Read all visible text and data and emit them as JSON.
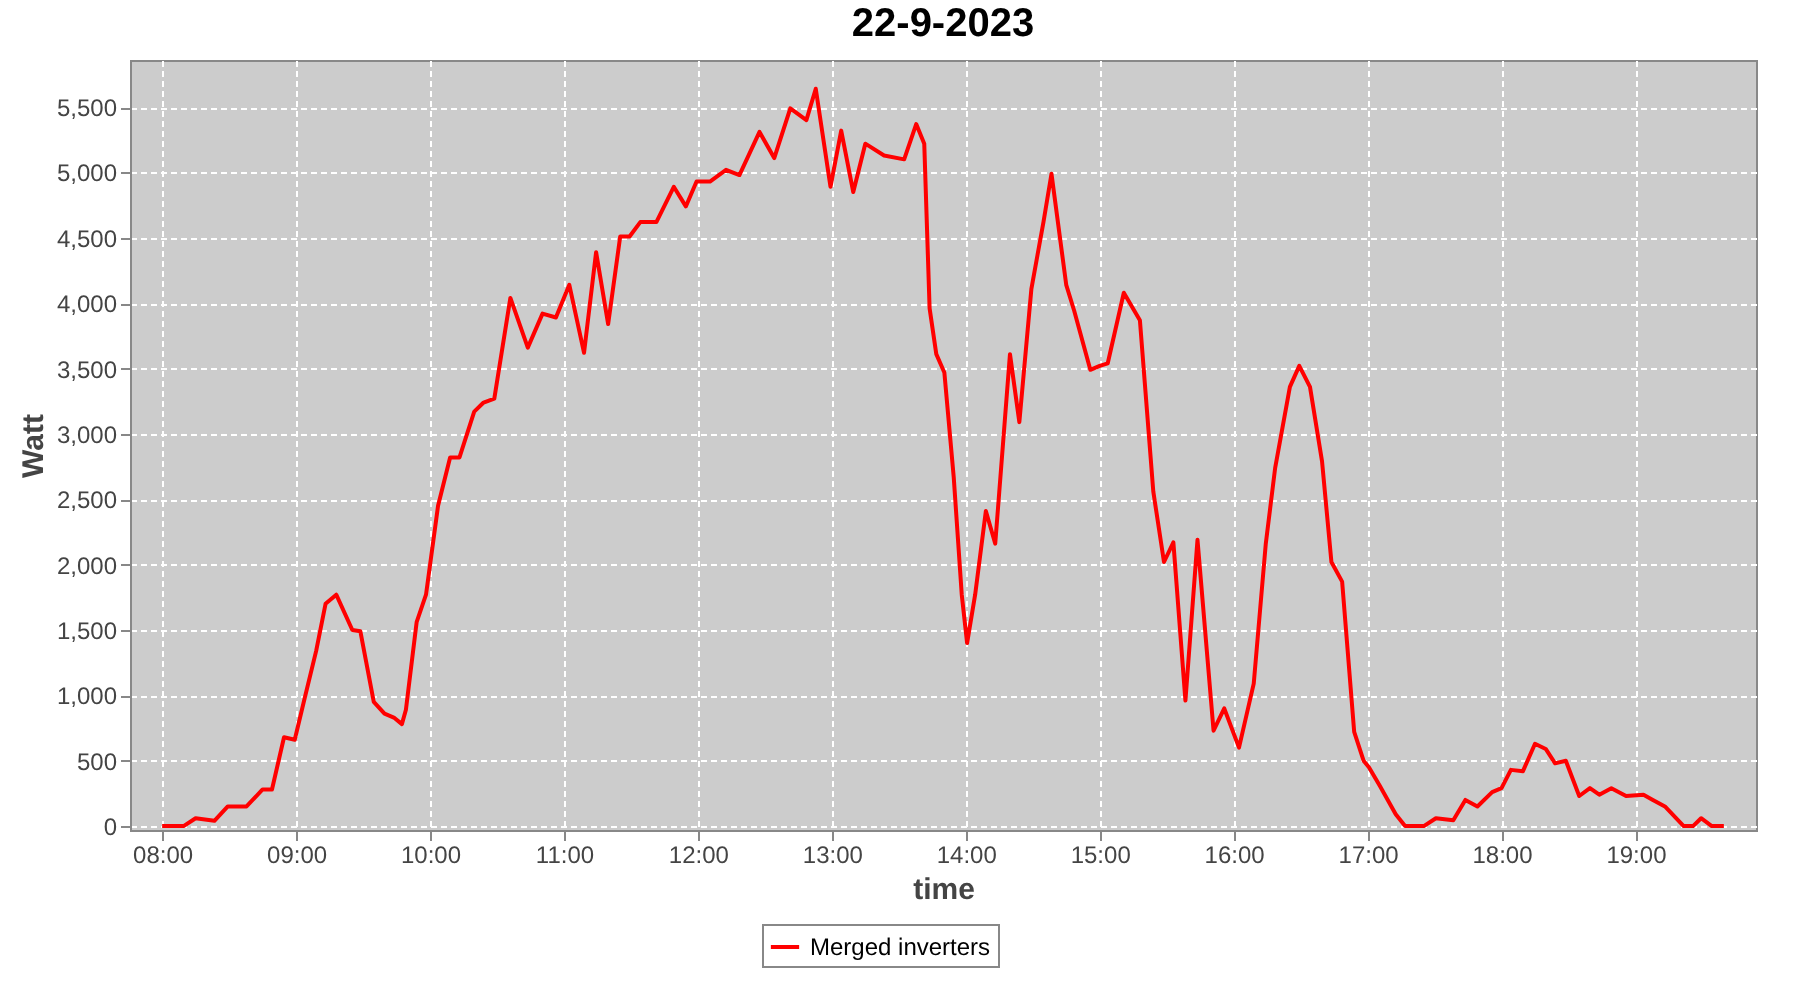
{
  "chart_data": {
    "type": "line",
    "title": "22-9-2023",
    "xlabel": "time",
    "ylabel": "Watt",
    "x": [
      8.0,
      8.16,
      8.25,
      8.39,
      8.49,
      8.63,
      8.75,
      8.82,
      8.91,
      8.99,
      9.06,
      9.15,
      9.22,
      9.3,
      9.42,
      9.48,
      9.58,
      9.66,
      9.73,
      9.79,
      9.82,
      9.9,
      9.97,
      10.06,
      10.15,
      10.22,
      10.33,
      10.4,
      10.48,
      10.6,
      10.73,
      10.84,
      10.94,
      11.04,
      11.15,
      11.24,
      11.33,
      11.42,
      11.49,
      11.57,
      11.69,
      11.82,
      11.91,
      11.99,
      12.09,
      12.21,
      12.31,
      12.46,
      12.57,
      12.69,
      12.81,
      12.88,
      12.99,
      13.07,
      13.16,
      13.25,
      13.39,
      13.54,
      13.63,
      13.69,
      13.73,
      13.78,
      13.84,
      13.91,
      13.97,
      14.01,
      14.07,
      14.15,
      14.22,
      14.33,
      14.4,
      14.49,
      14.58,
      14.64,
      14.75,
      14.81,
      14.93,
      15.0,
      15.06,
      15.18,
      15.3,
      15.4,
      15.48,
      15.55,
      15.64,
      15.73,
      15.85,
      15.93,
      16.04,
      16.15,
      16.24,
      16.31,
      16.42,
      16.49,
      16.57,
      16.66,
      16.73,
      16.81,
      16.9,
      16.97,
      17.01,
      17.09,
      17.21,
      17.28,
      17.42,
      17.51,
      17.64,
      17.73,
      17.82,
      17.93,
      18.0,
      18.07,
      18.16,
      18.25,
      18.33,
      18.4,
      18.48,
      18.58,
      18.66,
      18.73,
      18.82,
      18.93,
      19.06,
      19.13,
      19.22,
      19.36,
      19.43,
      19.49,
      19.57,
      19.66
    ],
    "series": [
      {
        "name": "Merged inverters",
        "color": "#ff0000",
        "values": [
          0,
          0,
          60,
          40,
          150,
          150,
          280,
          280,
          680,
          660,
          960,
          1340,
          1700,
          1770,
          1500,
          1490,
          950,
          860,
          830,
          780,
          890,
          1560,
          1770,
          2450,
          2820,
          2820,
          3170,
          3240,
          3270,
          4040,
          3660,
          3920,
          3890,
          4140,
          3620,
          4390,
          3840,
          4510,
          4510,
          4620,
          4620,
          4890,
          4740,
          4930,
          4930,
          5020,
          4980,
          5310,
          5110,
          5490,
          5400,
          5640,
          4890,
          5320,
          4850,
          5220,
          5130,
          5100,
          5370,
          5220,
          3960,
          3610,
          3470,
          2670,
          1770,
          1400,
          1770,
          2410,
          2160,
          3610,
          3090,
          4110,
          4620,
          4990,
          4140,
          3940,
          3490,
          3520,
          3540,
          4080,
          3870,
          2560,
          2020,
          2170,
          960,
          2190,
          730,
          900,
          600,
          1090,
          2160,
          2740,
          3360,
          3520,
          3360,
          2790,
          2020,
          1870,
          720,
          500,
          450,
          310,
          90,
          0,
          0,
          60,
          45,
          200,
          150,
          260,
          290,
          430,
          420,
          630,
          590,
          480,
          500,
          230,
          290,
          240,
          290,
          230,
          240,
          200,
          150,
          0,
          0,
          60,
          0,
          0
        ]
      }
    ],
    "xlim": [
      7.76,
      19.9
    ],
    "ylim": [
      -30,
      5860
    ],
    "xticks": [
      {
        "value": 8,
        "label": "08:00"
      },
      {
        "value": 9,
        "label": "09:00"
      },
      {
        "value": 10,
        "label": "10:00"
      },
      {
        "value": 11,
        "label": "11:00"
      },
      {
        "value": 12,
        "label": "12:00"
      },
      {
        "value": 13,
        "label": "13:00"
      },
      {
        "value": 14,
        "label": "14:00"
      },
      {
        "value": 15,
        "label": "15:00"
      },
      {
        "value": 16,
        "label": "16:00"
      },
      {
        "value": 17,
        "label": "17:00"
      },
      {
        "value": 18,
        "label": "18:00"
      },
      {
        "value": 19,
        "label": "19:00"
      }
    ],
    "yticks": [
      0,
      500,
      {
        "value": 1000,
        "label": "1,000"
      },
      {
        "value": 1500,
        "label": "1,500"
      },
      {
        "value": 2000,
        "label": "2,000"
      },
      {
        "value": 2500,
        "label": "2,500"
      },
      {
        "value": 3000,
        "label": "3,000"
      },
      {
        "value": 3500,
        "label": "3,500"
      },
      {
        "value": 4000,
        "label": "4,000"
      },
      {
        "value": 4500,
        "label": "4,500"
      },
      {
        "value": 5000,
        "label": "5,000"
      },
      {
        "value": 5500,
        "label": "5,500"
      }
    ],
    "grid": true,
    "legend": "bottom"
  }
}
